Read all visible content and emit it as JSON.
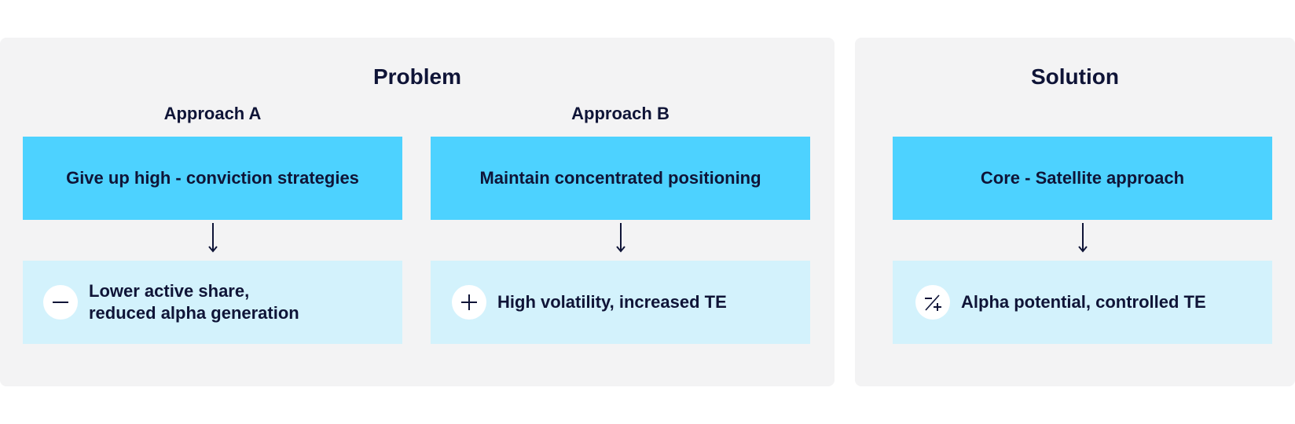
{
  "problem": {
    "title": "Problem",
    "approaches": [
      {
        "title": "Approach A",
        "action": "Give up high - conviction strategies",
        "result_lines": [
          "Lower active share,",
          "reduced alpha generation"
        ],
        "icon": "minus-icon"
      },
      {
        "title": "Approach B",
        "action": "Maintain concentrated positioning",
        "result_lines": [
          "High volatility, increased TE"
        ],
        "icon": "plus-icon"
      }
    ]
  },
  "solution": {
    "title": "Solution",
    "action": "Core - Satellite approach",
    "result_lines": [
      "Alpha potential, controlled TE"
    ],
    "icon": "plus-minus-icon"
  },
  "colors": {
    "panel_bg": "#f3f3f4",
    "action_box": "#4dd2ff",
    "result_box": "#d3f2fc",
    "text": "#0f1437"
  }
}
